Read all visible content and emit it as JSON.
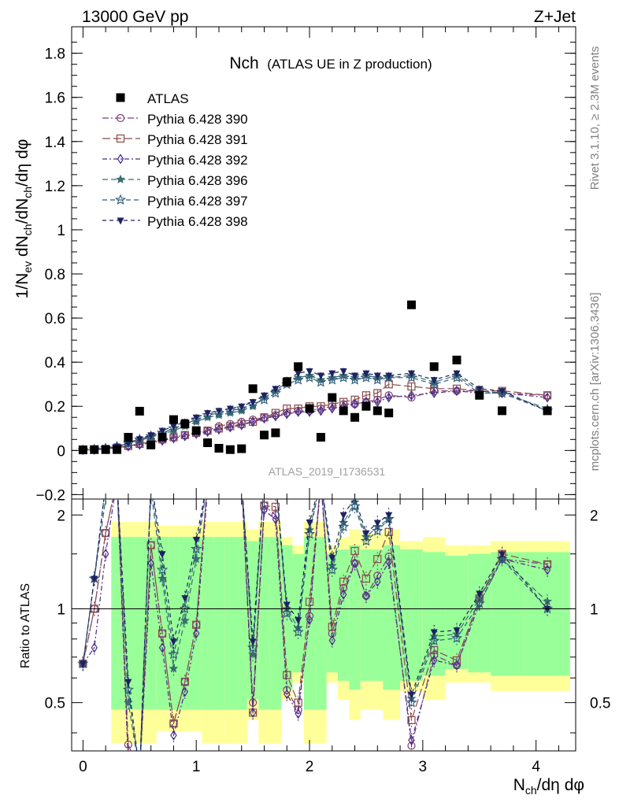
{
  "header": {
    "left_label": "13000 GeV pp",
    "right_label": "Z+Jet"
  },
  "side_labels": {
    "rivet": "Rivet 3.1.10, ≥ 2.3M events",
    "mcplots": "mcplots.cern.ch [arXiv:1306.3436]"
  },
  "chart_data": {
    "type": "scatter",
    "title_main": "Nch",
    "title_sub": "(ATLAS UE in Z production)",
    "analysis_label": "ATLAS_2019_I1736531",
    "xlabel": "N_ch/dη dφ",
    "ylabel": "1/N_ev dN_ch/dN_ch/dη dφ",
    "ratio_ylabel": "Ratio to ATLAS",
    "xlim": [
      -0.1,
      4.35
    ],
    "ylim": [
      -0.22,
      1.92
    ],
    "ratio_ylim": [
      0.35,
      2.25
    ],
    "x_ticks": [
      "0",
      "1",
      "2",
      "3",
      "4"
    ],
    "y_ticks": [
      "−0.2",
      "0",
      "0.2",
      "0.4",
      "0.6",
      "0.8",
      "1",
      "1.2",
      "1.4",
      "1.6",
      "1.8"
    ],
    "ratio_ticks": [
      "0.5",
      "1",
      "2"
    ],
    "legend_position": "top-left",
    "x": [
      0.0,
      0.1,
      0.2,
      0.3,
      0.4,
      0.5,
      0.6,
      0.7,
      0.8,
      0.9,
      1.0,
      1.1,
      1.2,
      1.3,
      1.4,
      1.5,
      1.6,
      1.7,
      1.8,
      1.9,
      2.0,
      2.1,
      2.2,
      2.3,
      2.4,
      2.5,
      2.6,
      2.7,
      2.9,
      3.1,
      3.3,
      3.5,
      3.7,
      4.1
    ],
    "data": {
      "name": "ATLAS",
      "values": [
        0.003,
        0.004,
        0.004,
        0.004,
        0.06,
        0.178,
        0.025,
        0.06,
        0.14,
        0.12,
        0.09,
        0.035,
        0.01,
        0.004,
        0.008,
        0.28,
        0.07,
        0.08,
        0.31,
        0.38,
        0.19,
        0.06,
        0.24,
        0.18,
        0.15,
        0.2,
        0.18,
        0.17,
        0.66,
        0.38,
        0.41,
        0.25,
        0.18,
        0.18
      ]
    },
    "series": [
      {
        "name": "Pythia 6.428 390",
        "color": "#7a3e7a",
        "marker": "circle-open",
        "dash": "8,3,2,3",
        "values": [
          0.002,
          0.004,
          0.007,
          0.013,
          0.022,
          0.03,
          0.04,
          0.05,
          0.06,
          0.07,
          0.08,
          0.09,
          0.11,
          0.12,
          0.13,
          0.14,
          0.15,
          0.16,
          0.17,
          0.18,
          0.18,
          0.19,
          0.2,
          0.21,
          0.21,
          0.22,
          0.23,
          0.25,
          0.24,
          0.27,
          0.27,
          0.27,
          0.26,
          0.25
        ]
      },
      {
        "name": "Pythia 6.428 391",
        "color": "#8b4a4a",
        "marker": "square-open",
        "dash": "10,4",
        "values": [
          0.002,
          0.004,
          0.007,
          0.012,
          0.02,
          0.03,
          0.04,
          0.05,
          0.06,
          0.07,
          0.08,
          0.09,
          0.1,
          0.11,
          0.12,
          0.13,
          0.15,
          0.17,
          0.19,
          0.19,
          0.2,
          0.2,
          0.21,
          0.22,
          0.23,
          0.25,
          0.26,
          0.3,
          0.29,
          0.28,
          0.28,
          0.27,
          0.27,
          0.25
        ]
      },
      {
        "name": "Pythia 6.428 392",
        "color": "#4b2a8a",
        "marker": "diamond-open",
        "dash": "6,3,2,3",
        "values": [
          0.002,
          0.003,
          0.006,
          0.011,
          0.019,
          0.026,
          0.035,
          0.045,
          0.055,
          0.065,
          0.075,
          0.085,
          0.095,
          0.105,
          0.115,
          0.13,
          0.145,
          0.155,
          0.165,
          0.175,
          0.175,
          0.18,
          0.19,
          0.2,
          0.21,
          0.22,
          0.22,
          0.24,
          0.25,
          0.26,
          0.27,
          0.26,
          0.26,
          0.24
        ]
      },
      {
        "name": "Pythia 6.428 396",
        "color": "#3a6f6f",
        "marker": "star-filled",
        "dash": "7,4",
        "values": [
          0.002,
          0.005,
          0.009,
          0.017,
          0.03,
          0.045,
          0.06,
          0.075,
          0.09,
          0.11,
          0.13,
          0.15,
          0.16,
          0.17,
          0.18,
          0.2,
          0.24,
          0.27,
          0.31,
          0.33,
          0.34,
          0.32,
          0.33,
          0.34,
          0.33,
          0.34,
          0.33,
          0.33,
          0.34,
          0.31,
          0.34,
          0.27,
          0.26,
          0.19
        ]
      },
      {
        "name": "Pythia 6.428 397",
        "color": "#2f5a7a",
        "marker": "star-open",
        "dash": "6,4",
        "values": [
          0.002,
          0.005,
          0.01,
          0.018,
          0.033,
          0.05,
          0.065,
          0.08,
          0.1,
          0.12,
          0.14,
          0.16,
          0.17,
          0.18,
          0.19,
          0.21,
          0.23,
          0.26,
          0.3,
          0.32,
          0.33,
          0.31,
          0.32,
          0.33,
          0.32,
          0.33,
          0.32,
          0.33,
          0.33,
          0.3,
          0.33,
          0.26,
          0.26,
          0.18
        ]
      },
      {
        "name": "Pythia 6.428 398",
        "color": "#1f2260",
        "marker": "triangle-down-filled",
        "dash": "5,4",
        "values": [
          0.002,
          0.005,
          0.01,
          0.019,
          0.035,
          0.052,
          0.07,
          0.09,
          0.11,
          0.13,
          0.15,
          0.17,
          0.18,
          0.19,
          0.2,
          0.22,
          0.25,
          0.28,
          0.32,
          0.35,
          0.36,
          0.34,
          0.35,
          0.36,
          0.34,
          0.35,
          0.34,
          0.34,
          0.35,
          0.32,
          0.35,
          0.28,
          0.27,
          0.18
        ]
      }
    ]
  }
}
